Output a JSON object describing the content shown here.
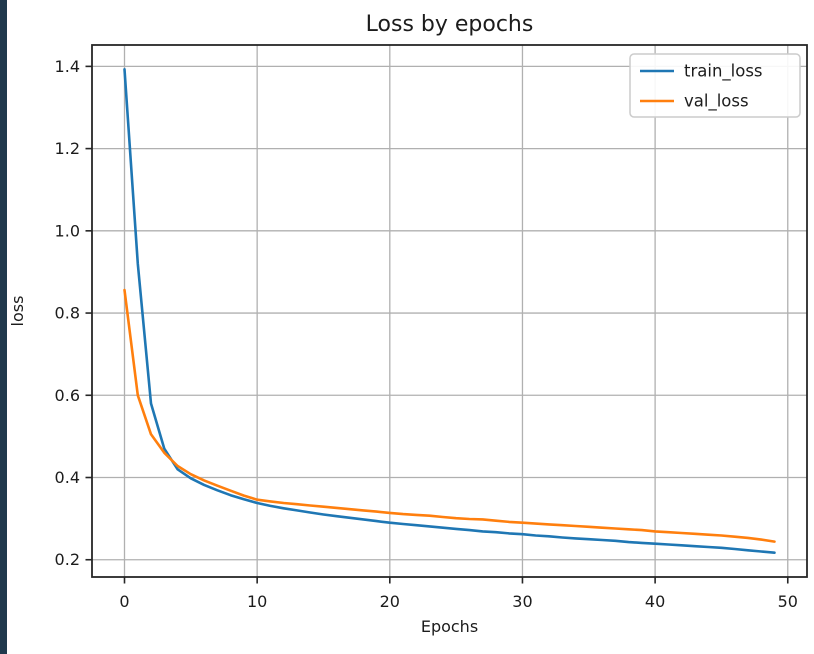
{
  "window": {
    "edge_color": "#20394d",
    "background": "#ffffff"
  },
  "chart_data": {
    "type": "line",
    "title": "Loss by epochs",
    "xlabel": "Epochs",
    "ylabel": "loss",
    "x": [
      0,
      1,
      2,
      3,
      4,
      5,
      6,
      7,
      8,
      9,
      10,
      11,
      12,
      13,
      14,
      15,
      16,
      17,
      18,
      19,
      20,
      21,
      22,
      23,
      24,
      25,
      26,
      27,
      28,
      29,
      30,
      31,
      32,
      33,
      34,
      35,
      36,
      37,
      38,
      39,
      40,
      41,
      42,
      43,
      44,
      45,
      46,
      47,
      48,
      49
    ],
    "series": [
      {
        "name": "train_loss",
        "color": "#1f77b4",
        "values": [
          1.393,
          0.92,
          0.58,
          0.47,
          0.42,
          0.398,
          0.382,
          0.369,
          0.357,
          0.347,
          0.338,
          0.331,
          0.325,
          0.32,
          0.315,
          0.31,
          0.306,
          0.302,
          0.298,
          0.294,
          0.29,
          0.287,
          0.284,
          0.281,
          0.278,
          0.275,
          0.272,
          0.269,
          0.267,
          0.264,
          0.262,
          0.259,
          0.257,
          0.254,
          0.252,
          0.25,
          0.248,
          0.246,
          0.243,
          0.241,
          0.239,
          0.237,
          0.235,
          0.233,
          0.231,
          0.229,
          0.226,
          0.223,
          0.22,
          0.217
        ]
      },
      {
        "name": "val_loss",
        "color": "#ff7f0e",
        "values": [
          0.856,
          0.6,
          0.505,
          0.46,
          0.428,
          0.408,
          0.393,
          0.38,
          0.368,
          0.356,
          0.346,
          0.342,
          0.338,
          0.335,
          0.332,
          0.329,
          0.326,
          0.323,
          0.32,
          0.317,
          0.314,
          0.311,
          0.309,
          0.307,
          0.304,
          0.301,
          0.299,
          0.298,
          0.295,
          0.292,
          0.29,
          0.288,
          0.286,
          0.284,
          0.282,
          0.28,
          0.278,
          0.276,
          0.274,
          0.272,
          0.269,
          0.267,
          0.265,
          0.263,
          0.261,
          0.259,
          0.256,
          0.253,
          0.249,
          0.244
        ]
      }
    ],
    "xlim": [
      -2.45,
      51.45
    ],
    "ylim": [
      0.158,
      1.452
    ],
    "xticks": [
      0,
      10,
      20,
      30,
      40,
      50
    ],
    "yticks": [
      0.2,
      0.4,
      0.6,
      0.8,
      1.0,
      1.2,
      1.4
    ],
    "grid": true,
    "legend": {
      "position": "upper right",
      "entries": [
        "train_loss",
        "val_loss"
      ]
    },
    "colors": {
      "grid": "#b0b0b0",
      "spine": "#262626",
      "text": "#1c1c1c",
      "legend_border": "#cccccc",
      "legend_bg": "#ffffff"
    }
  }
}
